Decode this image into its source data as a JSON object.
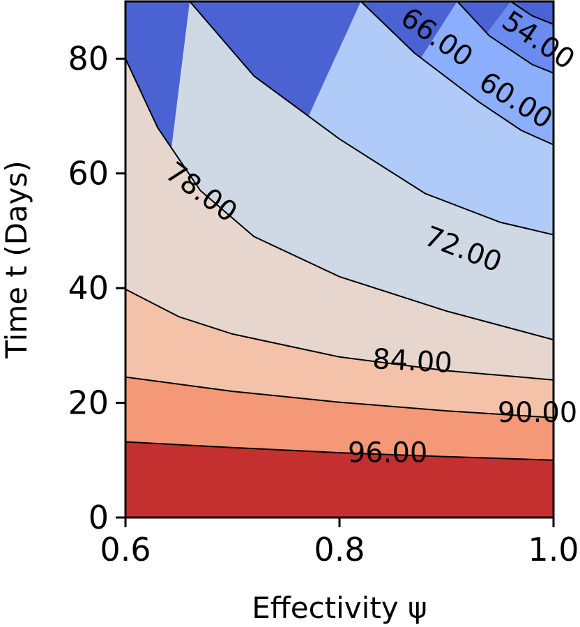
{
  "chart_data": {
    "type": "contour",
    "title": "",
    "xlabel": "Effectivity ψ",
    "ylabel": "Time t (Days)",
    "xlim": [
      0.6,
      1.0
    ],
    "ylim": [
      0,
      90
    ],
    "x_ticks": [
      "0.6",
      "0.8",
      "1.0"
    ],
    "y_ticks": [
      "0",
      "20",
      "40",
      "60",
      "80"
    ],
    "colormap": "coolwarm",
    "grid": false,
    "levels": [
      {
        "value": 96,
        "label": "96.00",
        "points": [
          [
            0.6,
            13.2
          ],
          [
            0.7,
            12.2
          ],
          [
            0.8,
            11.3
          ],
          [
            0.9,
            10.6
          ],
          [
            1.0,
            10.0
          ]
        ]
      },
      {
        "value": 90,
        "label": "90.00",
        "points": [
          [
            0.6,
            24.5
          ],
          [
            0.7,
            22.0
          ],
          [
            0.8,
            20.1
          ],
          [
            0.9,
            18.6
          ],
          [
            1.0,
            17.4
          ]
        ]
      },
      {
        "value": 84,
        "label": "84.00",
        "points": [
          [
            0.6,
            39.8
          ],
          [
            0.65,
            35.0
          ],
          [
            0.7,
            32.0
          ],
          [
            0.8,
            28.0
          ],
          [
            0.9,
            25.6
          ],
          [
            1.0,
            24.0
          ]
        ]
      },
      {
        "value": 78,
        "label": "78.00",
        "points": [
          [
            0.6,
            80.0
          ],
          [
            0.63,
            68.0
          ],
          [
            0.67,
            57.0
          ],
          [
            0.72,
            49.0
          ],
          [
            0.8,
            42.0
          ],
          [
            0.9,
            36.0
          ],
          [
            1.0,
            31.0
          ]
        ]
      },
      {
        "value": 72,
        "label": "72.00",
        "points": [
          [
            0.66,
            90.0
          ],
          [
            0.72,
            77.0
          ],
          [
            0.8,
            66.0
          ],
          [
            0.88,
            56.5
          ],
          [
            0.95,
            51.5
          ],
          [
            1.0,
            49.3
          ]
        ]
      },
      {
        "value": 66,
        "label": "66.00",
        "points": [
          [
            0.82,
            90.0
          ],
          [
            0.87,
            81.0
          ],
          [
            0.93,
            72.5
          ],
          [
            0.97,
            67.5
          ],
          [
            1.0,
            65.0
          ]
        ]
      },
      {
        "value": 60,
        "label": "60.00",
        "points": [
          [
            0.91,
            90.0
          ],
          [
            0.94,
            84.0
          ],
          [
            0.98,
            79.0
          ],
          [
            1.0,
            77.5
          ]
        ]
      },
      {
        "value": 54,
        "label": "54.00",
        "points": [
          [
            0.96,
            90.0
          ],
          [
            0.98,
            87.5
          ],
          [
            1.0,
            86.0
          ]
        ]
      }
    ],
    "bands": [
      {
        "range": "<96",
        "color": "#f0f0f0"
      },
      {
        "range": ">96",
        "color": "#c42f30"
      },
      {
        "range": "90-96",
        "color": "#e36c55"
      },
      {
        "range": "84-90",
        "color": "#f59878"
      },
      {
        "range": "78-84",
        "color": "#f4c2a9"
      },
      {
        "range": "72-78",
        "color": "#e7d6cd"
      },
      {
        "range": "66-72",
        "color": "#cfd8e5"
      },
      {
        "range": "60-66",
        "color": "#b0cbf7"
      },
      {
        "range": "54-60",
        "color": "#8caffd"
      },
      {
        "range": "48-54",
        "color": "#6a8bef"
      },
      {
        "range": "<48",
        "color": "#4b62d2"
      }
    ],
    "label_positions": [
      {
        "label": "96.00",
        "x": 0.845,
        "y": 11.0,
        "angle": 0
      },
      {
        "label": "90.00",
        "x": 0.985,
        "y": 18.0,
        "angle": 0
      },
      {
        "label": "84.00",
        "x": 0.868,
        "y": 27.0,
        "angle": 3
      },
      {
        "label": "78.00",
        "x": 0.67,
        "y": 56.5,
        "angle": 36
      },
      {
        "label": "72.00",
        "x": 0.915,
        "y": 46.5,
        "angle": 21
      },
      {
        "label": "66.00",
        "x": 0.89,
        "y": 83.5,
        "angle": 35
      },
      {
        "label": "60.00",
        "x": 0.964,
        "y": 72.5,
        "angle": 32
      },
      {
        "label": "54.00",
        "x": 0.985,
        "y": 83.0,
        "angle": 34
      }
    ]
  }
}
